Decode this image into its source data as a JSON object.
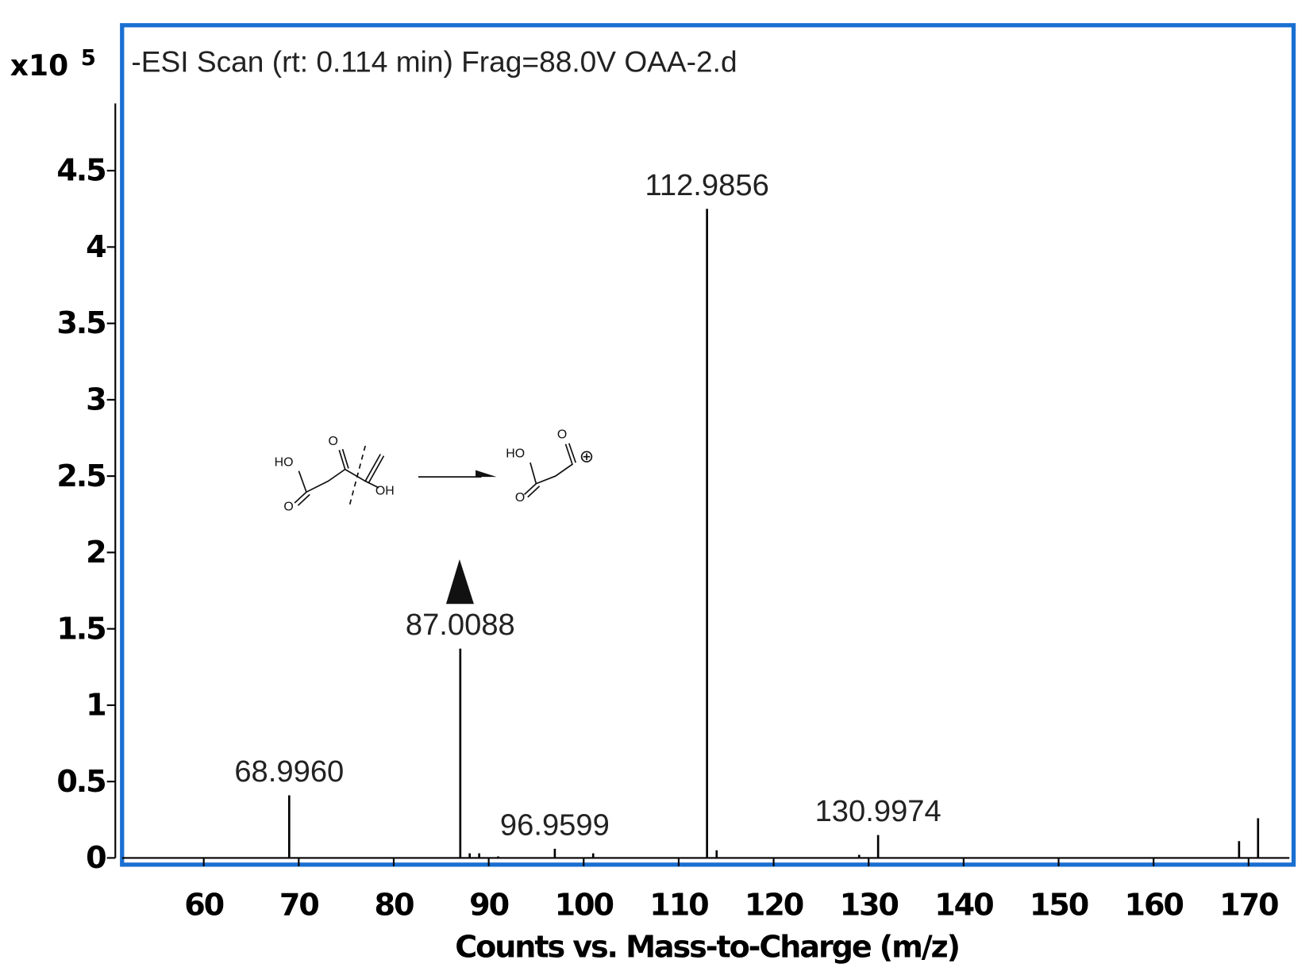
{
  "chart_data": {
    "type": "stem",
    "title": "-ESI Scan (rt: 0.114 min) Frag=88.0V OAA-2.d",
    "x_label": "Counts vs. Mass-to-Charge (m/z)",
    "y_multiplier": "x10",
    "y_exponent": "5",
    "x": [
      68.996,
      87.0088,
      88.0,
      89.0,
      91.0,
      96.9599,
      101.0,
      112.9856,
      114.0,
      129.0,
      130.9974,
      169.0,
      171.0
    ],
    "values": [
      0.41,
      1.37,
      0.03,
      0.03,
      0.01,
      0.06,
      0.03,
      4.25,
      0.05,
      0.02,
      0.15,
      0.11,
      0.26
    ],
    "peak_labels": [
      "68.9960",
      "87.0088",
      null,
      null,
      null,
      "96.9599",
      null,
      "112.9856",
      null,
      null,
      "130.9974",
      null,
      null
    ],
    "color": "#000000",
    "frame_color": "#1a6fd1",
    "xlim": [
      51.4,
      174.3
    ],
    "xticks": [
      60,
      70,
      80,
      90,
      100,
      110,
      120,
      130,
      140,
      150,
      160,
      170
    ],
    "ylim": [
      0,
      4.94
    ],
    "yticks": [
      0,
      0.5,
      1,
      1.5,
      2,
      2.5,
      3,
      3.5,
      4,
      4.5
    ],
    "reactant_labels": [
      "HO",
      "O",
      "O",
      "OH"
    ],
    "product_labels": [
      "HO",
      "O",
      "O"
    ]
  }
}
